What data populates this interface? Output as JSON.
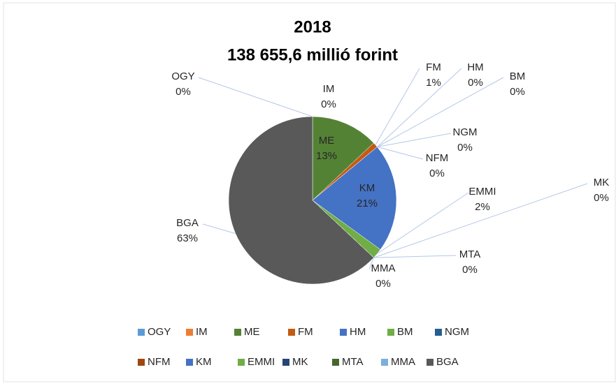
{
  "chart_data": {
    "type": "pie",
    "title": "2018",
    "subtitle": "138 655,6 millió forint",
    "categories": [
      "OGY",
      "IM",
      "ME",
      "FM",
      "HM",
      "BM",
      "NGM",
      "NFM",
      "KM",
      "EMMI",
      "MK",
      "MTA",
      "MMA",
      "BGA"
    ],
    "values": [
      0,
      0,
      13,
      1,
      0,
      0,
      0,
      0,
      21,
      2,
      0,
      0,
      0,
      63
    ],
    "value_labels": [
      "0%",
      "0%",
      "13%",
      "1%",
      "0%",
      "0%",
      "0%",
      "0%",
      "21%",
      "2%",
      "0%",
      "0%",
      "0%",
      "63%"
    ],
    "colors": [
      "#5b9bd5",
      "#ed7d31",
      "#548235",
      "#c55a11",
      "#4472c4",
      "#70ad47",
      "#255e91",
      "#9e480e",
      "#4472c4",
      "#70ad47",
      "#264478",
      "#43682b",
      "#7cafdd",
      "#595959"
    ],
    "legend": "bottom"
  }
}
